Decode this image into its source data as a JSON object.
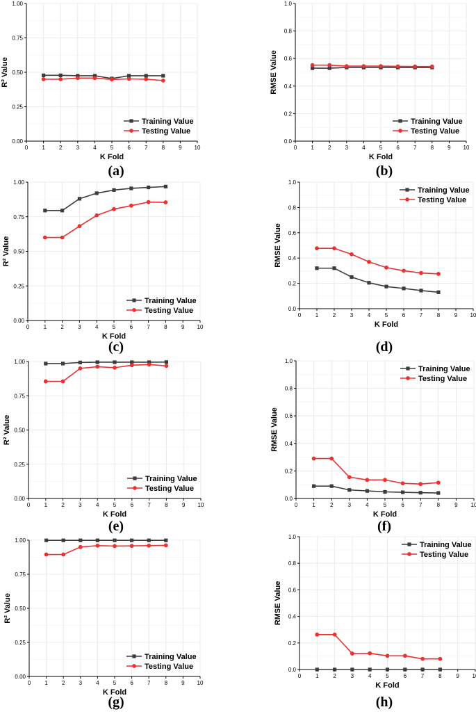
{
  "figure": {
    "title": ""
  },
  "chart_data": [
    {
      "panel": "(a)",
      "type": "line",
      "xlabel": "K Fold",
      "ylabel": "R² Value",
      "xlim": [
        0,
        10
      ],
      "ylim": [
        0,
        1
      ],
      "xticks": [
        "0",
        "1",
        "2",
        "3",
        "4",
        "5",
        "6",
        "7",
        "8",
        "9",
        "10"
      ],
      "yticks": [
        "0.00",
        "0.25",
        "0.50",
        "0.75",
        "1.00"
      ],
      "legend": "bottom-right",
      "x": [
        1,
        2,
        3,
        4,
        5,
        6,
        7,
        8
      ],
      "series": [
        {
          "name": "Training Value",
          "color": "#3c3c3c",
          "marker": "square",
          "values": [
            0.478,
            0.478,
            0.475,
            0.475,
            0.455,
            0.475,
            0.475,
            0.475
          ]
        },
        {
          "name": "Testing Value",
          "color": "#ee3030",
          "marker": "circle",
          "values": [
            0.45,
            0.45,
            0.458,
            0.458,
            0.448,
            0.452,
            0.45,
            0.44
          ]
        }
      ]
    },
    {
      "panel": "(b)",
      "type": "line",
      "xlabel": "K Fold",
      "ylabel": "RMSE Value",
      "xlim": [
        0,
        10
      ],
      "ylim": [
        0,
        1
      ],
      "xticks": [
        "0",
        "1",
        "2",
        "3",
        "4",
        "5",
        "6",
        "7",
        "8",
        "9",
        "10"
      ],
      "yticks": [
        "0.0",
        "0.2",
        "0.4",
        "0.6",
        "0.8",
        "1.0"
      ],
      "legend": "bottom-right",
      "x": [
        1,
        2,
        3,
        4,
        5,
        6,
        7,
        8
      ],
      "series": [
        {
          "name": "Training Value",
          "color": "#3c3c3c",
          "marker": "square",
          "values": [
            0.53,
            0.53,
            0.535,
            0.535,
            0.535,
            0.535,
            0.535,
            0.535
          ]
        },
        {
          "name": "Testing Value",
          "color": "#ee3030",
          "marker": "circle",
          "values": [
            0.552,
            0.552,
            0.545,
            0.545,
            0.545,
            0.543,
            0.542,
            0.542
          ]
        }
      ]
    },
    {
      "panel": "(c)",
      "type": "line",
      "xlabel": "K Fold",
      "ylabel": "R² Value",
      "xlim": [
        0,
        10
      ],
      "ylim": [
        0,
        1
      ],
      "xticks": [
        "0",
        "1",
        "2",
        "3",
        "4",
        "5",
        "6",
        "7",
        "8",
        "9",
        "10"
      ],
      "yticks": [
        "0.00",
        "0.25",
        "0.50",
        "0.75",
        "1.00"
      ],
      "legend": "bottom-right",
      "x": [
        1,
        2,
        3,
        4,
        5,
        6,
        7,
        8
      ],
      "series": [
        {
          "name": "Training Value",
          "color": "#3c3c3c",
          "marker": "square",
          "values": [
            0.795,
            0.795,
            0.88,
            0.92,
            0.943,
            0.955,
            0.962,
            0.968
          ]
        },
        {
          "name": "Testing Value",
          "color": "#ee3030",
          "marker": "circle",
          "values": [
            0.6,
            0.6,
            0.682,
            0.76,
            0.805,
            0.83,
            0.856,
            0.854
          ]
        }
      ]
    },
    {
      "panel": "(d)",
      "type": "line",
      "xlabel": "K Fold",
      "ylabel": "RMSE Value",
      "xlim": [
        0,
        10
      ],
      "ylim": [
        0,
        1
      ],
      "xticks": [
        "0",
        "1",
        "2",
        "3",
        "4",
        "5",
        "6",
        "7",
        "8",
        "9",
        "10"
      ],
      "yticks": [
        "0.0",
        "0.2",
        "0.4",
        "0.6",
        "0.8",
        "1.0"
      ],
      "legend": "top-right",
      "x": [
        1,
        2,
        3,
        4,
        5,
        6,
        7,
        8
      ],
      "series": [
        {
          "name": "Training Value",
          "color": "#3c3c3c",
          "marker": "square",
          "values": [
            0.32,
            0.32,
            0.25,
            0.205,
            0.175,
            0.16,
            0.143,
            0.13
          ]
        },
        {
          "name": "Testing Value",
          "color": "#ee3030",
          "marker": "circle",
          "values": [
            0.477,
            0.477,
            0.43,
            0.37,
            0.325,
            0.3,
            0.282,
            0.275
          ]
        }
      ]
    },
    {
      "panel": "(e)",
      "type": "line",
      "xlabel": "K Fold",
      "ylabel": "R² Value",
      "xlim": [
        0,
        10
      ],
      "ylim": [
        0,
        1
      ],
      "xticks": [
        "0",
        "1",
        "2",
        "3",
        "4",
        "5",
        "6",
        "7",
        "8",
        "9",
        "10"
      ],
      "yticks": [
        "0.00",
        "0.25",
        "0.50",
        "0.75",
        "1.00"
      ],
      "legend": "bottom-right",
      "x": [
        1,
        2,
        3,
        4,
        5,
        6,
        7,
        8
      ],
      "series": [
        {
          "name": "Training Value",
          "color": "#3c3c3c",
          "marker": "square",
          "values": [
            0.985,
            0.985,
            0.993,
            0.995,
            0.995,
            0.995,
            0.995,
            0.996
          ]
        },
        {
          "name": "Testing Value",
          "color": "#ee3030",
          "marker": "circle",
          "values": [
            0.855,
            0.855,
            0.95,
            0.962,
            0.955,
            0.973,
            0.978,
            0.968
          ]
        }
      ]
    },
    {
      "panel": "(f)",
      "type": "line",
      "xlabel": "K Fold",
      "ylabel": "RMSE Value",
      "xlim": [
        0,
        10
      ],
      "ylim": [
        0,
        1
      ],
      "xticks": [
        "0",
        "1",
        "2",
        "3",
        "4",
        "5",
        "6",
        "7",
        "8",
        "9",
        "10"
      ],
      "yticks": [
        "0.0",
        "0.2",
        "0.4",
        "0.6",
        "0.8",
        "1.0"
      ],
      "legend": "top-right",
      "x": [
        1,
        2,
        3,
        4,
        5,
        6,
        7,
        8
      ],
      "series": [
        {
          "name": "Training Value",
          "color": "#3c3c3c",
          "marker": "square",
          "values": [
            0.09,
            0.09,
            0.062,
            0.055,
            0.048,
            0.045,
            0.042,
            0.04
          ]
        },
        {
          "name": "Testing Value",
          "color": "#ee3030",
          "marker": "circle",
          "values": [
            0.29,
            0.29,
            0.155,
            0.135,
            0.135,
            0.11,
            0.105,
            0.115
          ]
        }
      ]
    },
    {
      "panel": "(g)",
      "type": "line",
      "xlabel": "K Fold",
      "ylabel": "R² Value",
      "xlim": [
        0,
        10
      ],
      "ylim": [
        0,
        1
      ],
      "xticks": [
        "0",
        "1",
        "2",
        "3",
        "4",
        "5",
        "6",
        "7",
        "8",
        "9",
        "10"
      ],
      "yticks": [
        "0.00",
        "0.25",
        "0.50",
        "0.75",
        "1.00"
      ],
      "legend": "bottom-right",
      "x": [
        1,
        2,
        3,
        4,
        5,
        6,
        7,
        8
      ],
      "series": [
        {
          "name": "Training Value",
          "color": "#3c3c3c",
          "marker": "square",
          "values": [
            0.999,
            0.999,
            0.999,
            0.999,
            0.999,
            0.999,
            0.999,
            0.999
          ]
        },
        {
          "name": "Testing Value",
          "color": "#ee3030",
          "marker": "circle",
          "values": [
            0.895,
            0.895,
            0.95,
            0.96,
            0.957,
            0.958,
            0.96,
            0.962
          ]
        }
      ]
    },
    {
      "panel": "(h)",
      "type": "line",
      "xlabel": "K Fold",
      "ylabel": "RMSE Value",
      "xlim": [
        0,
        10
      ],
      "ylim": [
        0,
        1
      ],
      "xticks": [
        "0",
        "1",
        "2",
        "3",
        "4",
        "5",
        "6",
        "7",
        "8",
        "9",
        "10"
      ],
      "yticks": [
        "0.0",
        "0.2",
        "0.4",
        "0.6",
        "0.8",
        "1.0"
      ],
      "legend": "top-right",
      "x": [
        1,
        2,
        3,
        4,
        5,
        6,
        7,
        8
      ],
      "series": [
        {
          "name": "Training Value",
          "color": "#3c3c3c",
          "marker": "square",
          "values": [
            0.0,
            0.0,
            0.0,
            0.0,
            0.0,
            0.0,
            0.0,
            0.0
          ]
        },
        {
          "name": "Testing Value",
          "color": "#ee3030",
          "marker": "circle",
          "values": [
            0.263,
            0.263,
            0.12,
            0.122,
            0.103,
            0.103,
            0.08,
            0.08
          ]
        }
      ]
    }
  ]
}
